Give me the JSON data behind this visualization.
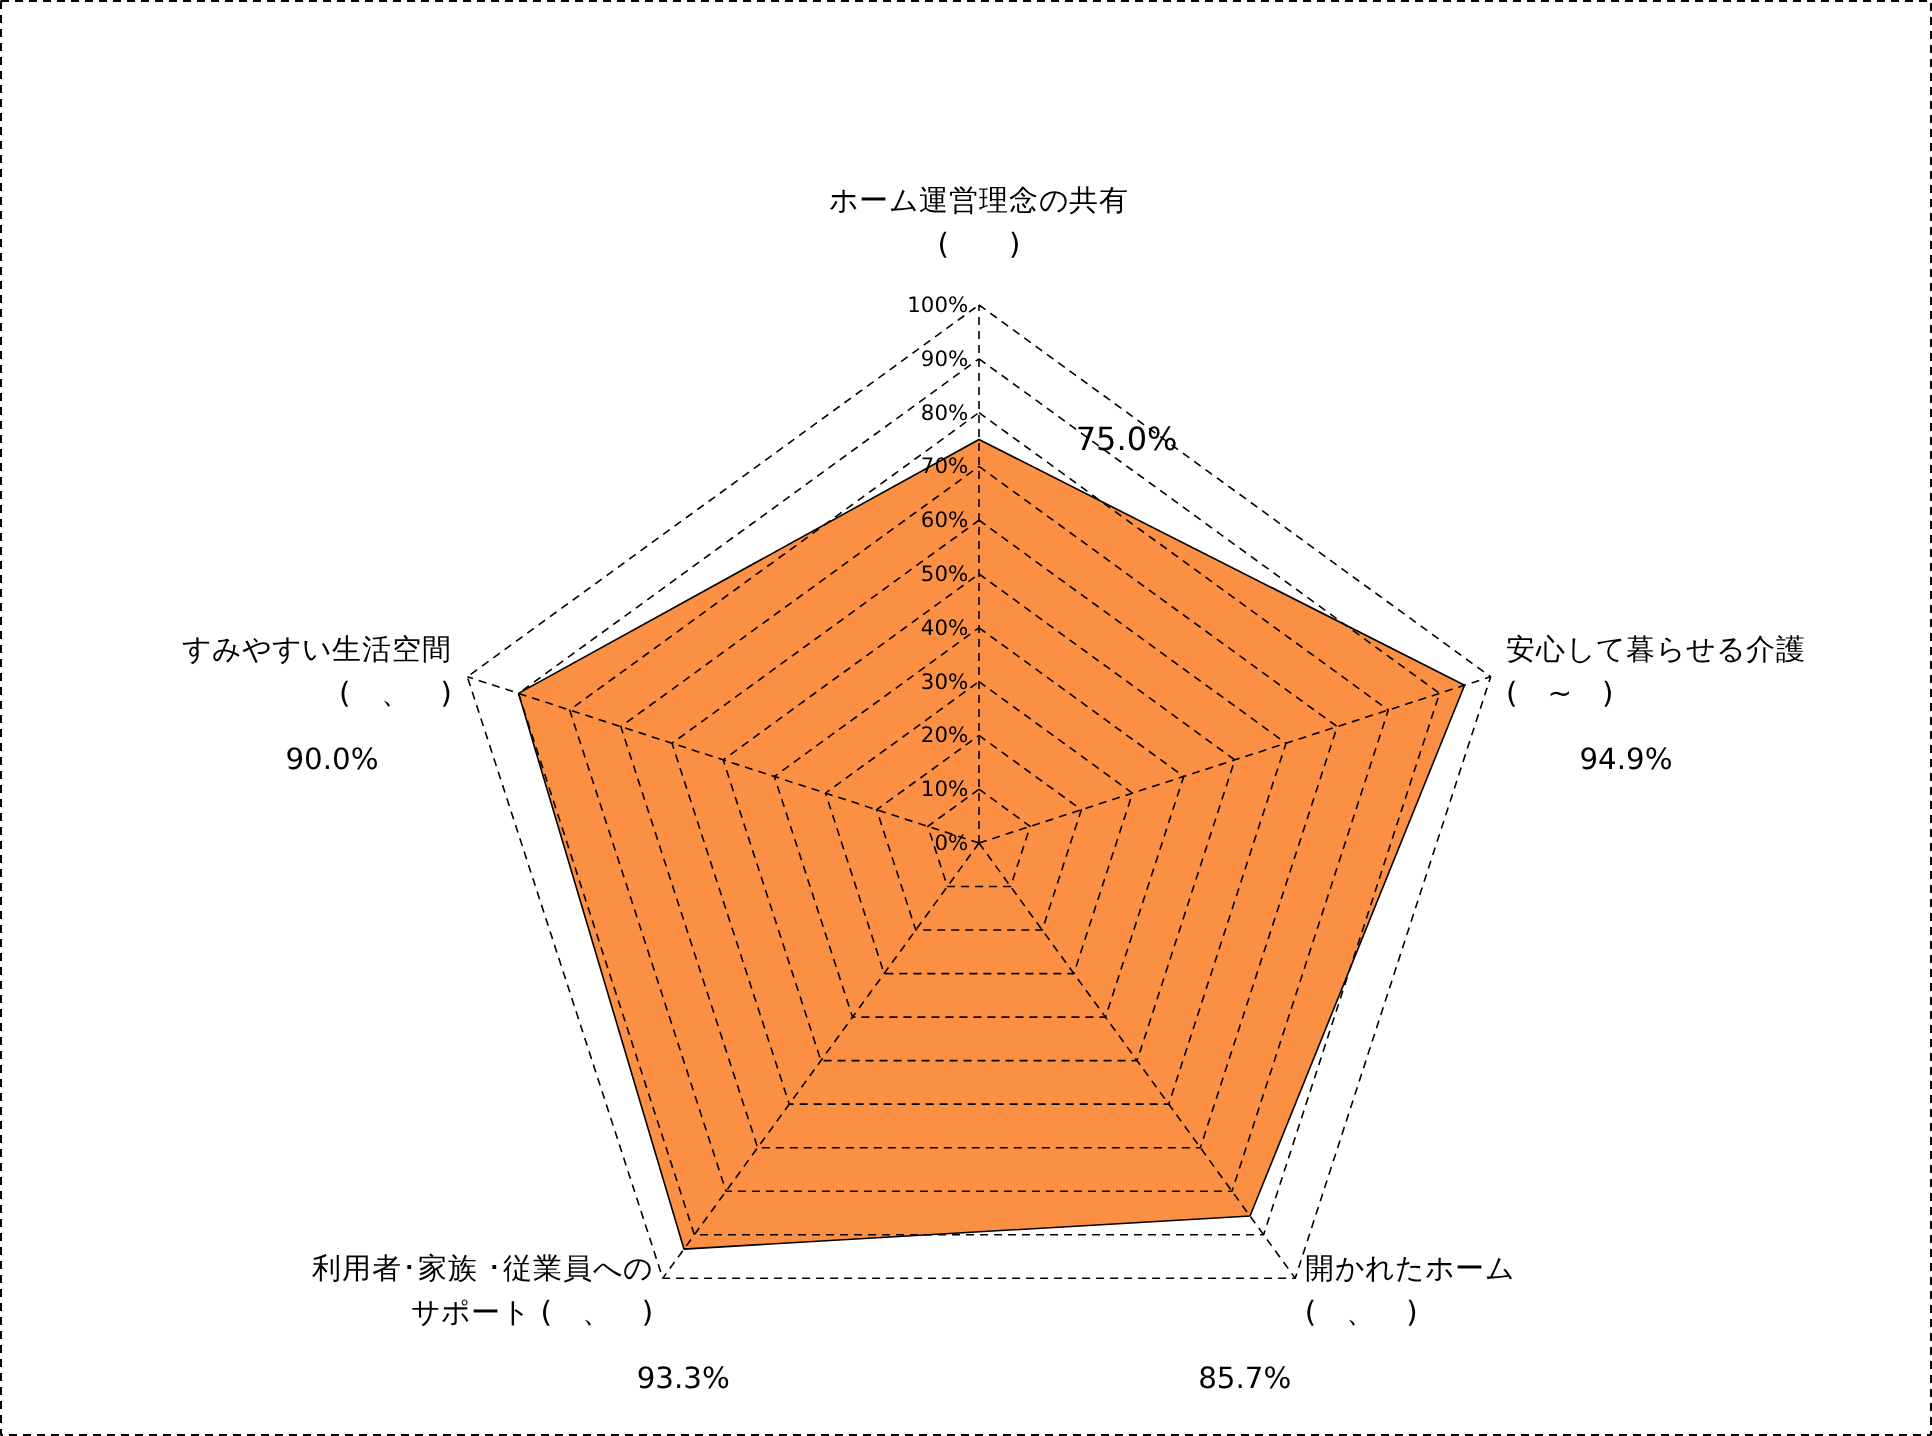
{
  "chart_data": {
    "type": "radar",
    "categories": [
      "ホーム運営理念の共有\n(　　)",
      "安心して暮らせる介護\n(　~　)",
      "開かれたホーム\n(　、　)",
      "利用者･家族 ･従業員へのサポート (　、　)",
      "すみやすい生活空間\n(　、　)"
    ],
    "series": [
      {
        "color": "#fb8a3a",
        "values": [
          75.0,
          94.9,
          85.7,
          93.3,
          90.0
        ]
      }
    ],
    "value_labels": [
      "75.0%",
      "94.9%",
      "85.7%",
      "93.3%",
      "90.0%"
    ],
    "ylim": [
      0,
      100
    ],
    "yticks": [
      {
        "value": 0,
        "label": "0%"
      },
      {
        "value": 10,
        "label": "10%"
      },
      {
        "value": 20,
        "label": "20%"
      },
      {
        "value": 30,
        "label": "30%"
      },
      {
        "value": 40,
        "label": "40%"
      },
      {
        "value": 50,
        "label": "50%"
      },
      {
        "value": 60,
        "label": "60%"
      },
      {
        "value": 70,
        "label": "70%"
      },
      {
        "value": 80,
        "label": "80%"
      },
      {
        "value": 90,
        "label": "90%"
      },
      {
        "value": 100,
        "label": "100%"
      }
    ],
    "grid": true
  }
}
